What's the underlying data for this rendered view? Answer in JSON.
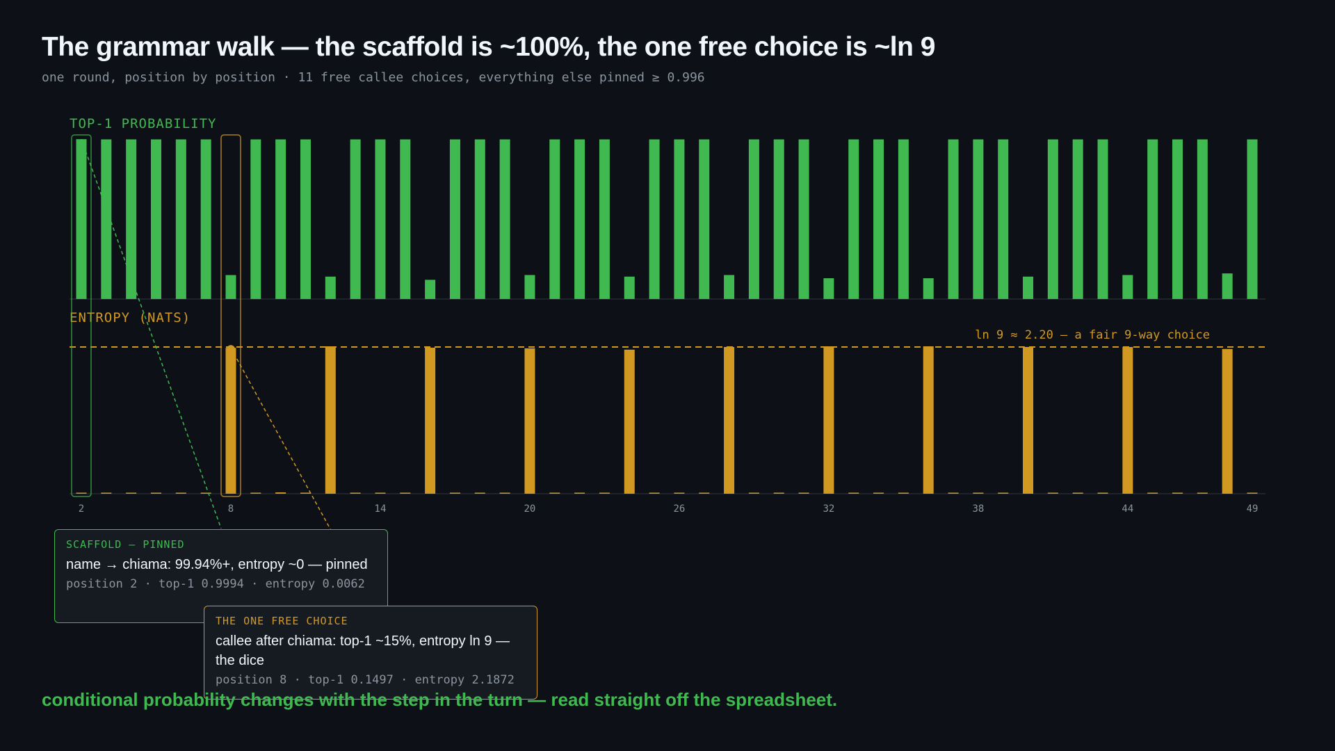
{
  "title": "The grammar walk — the scaffold is ~100%, the one free choice is ~ln 9",
  "subtitle": "one round, position by position · 11 free callee choices, everything else pinned ≥ 0.996",
  "colors": {
    "background": "#0d1117",
    "probability": "#3fb950",
    "entropy": "#d29922",
    "muted": "#8b949e"
  },
  "chart_data": [
    {
      "type": "bar",
      "title": "TOP-1 PROBABILITY",
      "x": [
        2,
        3,
        4,
        5,
        6,
        7,
        8,
        9,
        10,
        11,
        12,
        13,
        14,
        15,
        16,
        17,
        18,
        19,
        20,
        21,
        22,
        23,
        24,
        25,
        26,
        27,
        28,
        29,
        30,
        31,
        32,
        33,
        34,
        35,
        36,
        37,
        38,
        39,
        40,
        41,
        42,
        43,
        44,
        45,
        46,
        47,
        48,
        49
      ],
      "values": [
        0.9994,
        0.998,
        0.998,
        0.998,
        0.998,
        0.998,
        0.1497,
        0.998,
        0.998,
        0.998,
        0.14,
        0.998,
        0.998,
        0.998,
        0.12,
        0.998,
        0.998,
        0.998,
        0.15,
        0.998,
        0.998,
        0.998,
        0.14,
        0.998,
        0.998,
        0.998,
        0.15,
        0.998,
        0.998,
        0.998,
        0.13,
        0.998,
        0.998,
        0.998,
        0.13,
        0.998,
        0.998,
        0.998,
        0.14,
        0.998,
        0.998,
        0.998,
        0.15,
        0.998,
        0.998,
        0.998,
        0.16,
        0.998
      ],
      "ylim": [
        0,
        1
      ]
    },
    {
      "type": "bar",
      "title": "ENTROPY (NATS)",
      "x": [
        2,
        3,
        4,
        5,
        6,
        7,
        8,
        9,
        10,
        11,
        12,
        13,
        14,
        15,
        16,
        17,
        18,
        19,
        20,
        21,
        22,
        23,
        24,
        25,
        26,
        27,
        28,
        29,
        30,
        31,
        32,
        33,
        34,
        35,
        36,
        37,
        38,
        39,
        40,
        41,
        42,
        43,
        44,
        45,
        46,
        47,
        48,
        49
      ],
      "values": [
        0.0062,
        0.005,
        0.005,
        0.005,
        0.005,
        0.005,
        2.1872,
        0.005,
        0.02,
        0.005,
        2.21,
        0.005,
        0.01,
        0.005,
        2.19,
        0.005,
        0.005,
        0.005,
        2.18,
        0.005,
        0.01,
        0.005,
        2.16,
        0.005,
        0.01,
        0.005,
        2.2,
        0.005,
        0.005,
        0.005,
        2.21,
        0.005,
        0.005,
        0.005,
        2.21,
        0.005,
        0.005,
        0.005,
        2.2,
        0.005,
        0.005,
        0.005,
        2.2,
        0.005,
        0.005,
        0.005,
        2.17,
        0.005
      ],
      "ylim": [
        0,
        2.2
      ],
      "reference_line": {
        "value": 2.2,
        "label": "ln 9 ≈ 2.20 — a fair 9-way choice"
      }
    }
  ],
  "x_ticks": [
    "2",
    "8",
    "14",
    "20",
    "26",
    "32",
    "38",
    "44",
    "49"
  ],
  "annotations": {
    "scaffold": {
      "kicker": "SCAFFOLD — PINNED",
      "body": "name → chiama: 99.94%+, entropy ~0 — pinned",
      "meta": "position 2 · top-1 0.9994 · entropy 0.0062"
    },
    "free_choice": {
      "kicker": "THE ONE FREE CHOICE",
      "body": "callee after chiama: top-1 ~15%, entropy ln 9 — the dice",
      "meta": "position 8 · top-1 0.1497 · entropy 2.1872"
    }
  },
  "footer": "conditional probability changes with the step in the turn — read straight off the spreadsheet."
}
